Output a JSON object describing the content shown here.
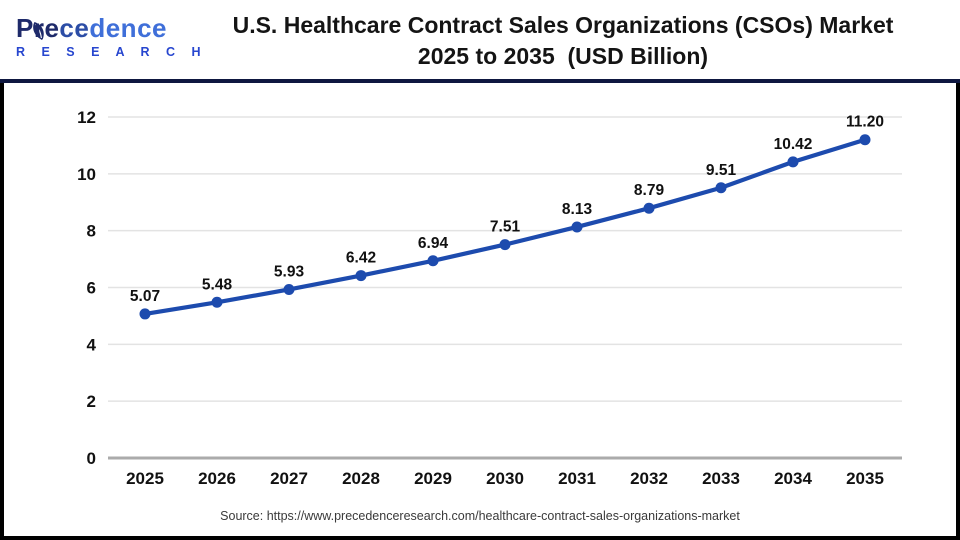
{
  "header": {
    "logo": {
      "brand_part1": "Pre",
      "brand_part2": "ce",
      "brand_part3": "dence",
      "subbrand": "R E S E A R C H"
    },
    "title_line1": "U.S. Healthcare Contract Sales Organizations (CSOs) Market",
    "title_line2": "2025 to 2035  (USD Billion)"
  },
  "chart_data": {
    "type": "line",
    "title": "U.S. Healthcare Contract Sales Organizations (CSOs) Market 2025 to 2035 (USD Billion)",
    "categories": [
      "2025",
      "2026",
      "2027",
      "2028",
      "2029",
      "2030",
      "2031",
      "2032",
      "2033",
      "2034",
      "2035"
    ],
    "values": [
      5.07,
      5.48,
      5.93,
      6.42,
      6.94,
      7.51,
      8.13,
      8.79,
      9.51,
      10.42,
      11.2
    ],
    "data_labels": [
      "5.07",
      "5.48",
      "5.93",
      "6.42",
      "6.94",
      "7.51",
      "8.13",
      "8.79",
      "9.51",
      "10.42",
      "11.20"
    ],
    "xlabel": "",
    "ylabel": "",
    "ylim": [
      0,
      12
    ],
    "ytick_step": 2,
    "grid": true,
    "legend_position": "none",
    "line_color": "#1d4bae",
    "marker": "circle"
  },
  "footer": {
    "source": "Source: https://www.precedenceresearch.com/healthcare-contract-sales-organizations-market"
  },
  "colors": {
    "line": "#1d4bae",
    "grid": "#e3e3e3",
    "zero_axis": "#ababab",
    "divider": "#0e1740",
    "page_border": "#000000",
    "title_text": "#141414",
    "tick_text": "#111111",
    "source_text": "#3a3a3a",
    "logo_dark": "#1e2a6a",
    "logo_mid": "#2c4da6",
    "logo_light": "#3f6fd9",
    "logo_sub": "#2746cf"
  }
}
